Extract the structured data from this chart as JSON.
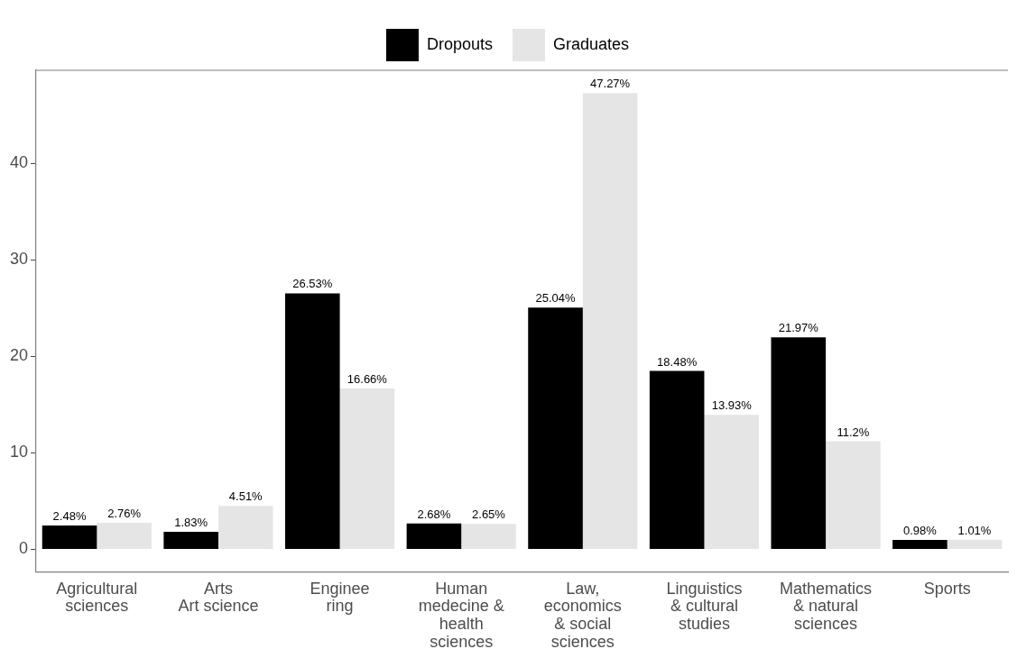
{
  "chart_data": {
    "type": "bar",
    "categories": [
      "Agricultural\nsciences",
      "Arts\nArt science",
      "Enginee\nring",
      "Human\nmedecine &\nhealth\nsciences",
      "Law,\neconomics\n& social\nsciences",
      "Linguistics\n& cultural\nstudies",
      "Mathematics\n& natural\nsciences",
      "Sports"
    ],
    "series": [
      {
        "name": "Dropouts",
        "color": "#000000",
        "values": [
          2.48,
          1.83,
          26.53,
          2.68,
          25.04,
          18.48,
          21.97,
          0.98
        ],
        "value_labels": [
          "2.48%",
          "1.83%",
          "26.53%",
          "2.68%",
          "25.04%",
          "18.48%",
          "21.97%",
          "0.98%"
        ]
      },
      {
        "name": "Graduates",
        "color": "#e5e5e5",
        "values": [
          2.76,
          4.51,
          16.66,
          2.65,
          47.27,
          13.93,
          11.2,
          1.01
        ],
        "value_labels": [
          "2.76%",
          "4.51%",
          "16.66%",
          "2.65%",
          "47.27%",
          "13.93%",
          "11.2%",
          "1.01%"
        ]
      }
    ],
    "ylim": [
      -2.36,
      49.63
    ],
    "yticks": [
      0,
      10,
      20,
      30,
      40
    ],
    "grid": false,
    "legend": "top"
  }
}
